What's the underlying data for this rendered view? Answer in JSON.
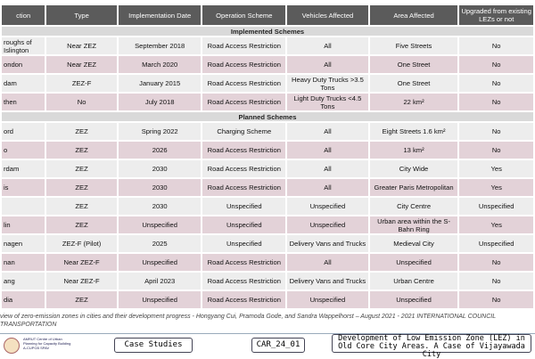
{
  "table": {
    "header": [
      "ction",
      "Type",
      "Implementation Date",
      "Operation Scheme",
      "Vehicles Affected",
      "Area Affected",
      "Upgraded from existing LEZs or not"
    ],
    "sections": [
      {
        "title": "Implemented Schemes",
        "rows": [
          [
            "roughs of Islington",
            "Near ZEZ",
            "September 2018",
            "Road Access Restriction",
            "All",
            "Five Streets",
            "No"
          ],
          [
            "ondon",
            "Near ZEZ",
            "March 2020",
            "Road Access Restriction",
            "All",
            "One Street",
            "No"
          ],
          [
            "dam",
            "ZEZ-F",
            "January 2015",
            "Road Access Restriction",
            "Heavy Duty Trucks >3.5 Tons",
            "One Street",
            "No"
          ],
          [
            "then",
            "No",
            "July 2018",
            "Road Access Restriction",
            "Light Duty Trucks <4.5 Tons",
            "22 km²",
            "No"
          ]
        ]
      },
      {
        "title": "Planned Schemes",
        "rows": [
          [
            "ord",
            "ZEZ",
            "Spring 2022",
            "Charging Scheme",
            "All",
            "Eight Streets 1.6 km²",
            "No"
          ],
          [
            "o",
            "ZEZ",
            "2026",
            "Road Access Restriction",
            "All",
            "13 km²",
            "No"
          ],
          [
            "rdam",
            "ZEZ",
            "2030",
            "Road Access Restriction",
            "All",
            "City Wide",
            "Yes"
          ],
          [
            "is",
            "ZEZ",
            "2030",
            "Road Access Restriction",
            "All",
            "Greater Paris Metropolitan",
            "Yes"
          ],
          [
            null,
            "ZEZ",
            "2030",
            "Unspecified",
            "Unspecified",
            "City Centre",
            "Unspecified"
          ],
          [
            "lin",
            "ZEZ",
            "Unspecified",
            "Unspecified",
            "Unspecified",
            "Urban area within the S-Bahn Ring",
            "Yes"
          ],
          [
            "nagen",
            "ZEZ-F (Pilot)",
            "2025",
            "Unspecified",
            "Delivery Vans and Trucks",
            "Medieval City",
            "Unspecified"
          ],
          [
            "nan",
            "Near ZEZ-F",
            "Unspecified",
            "Road Access Restriction",
            "All",
            "Unspecified",
            "No"
          ],
          [
            "ang",
            "Near ZEZ-F",
            "April 2023",
            "Road Access Restriction",
            "Delivery Vans and Trucks",
            "Urban Centre",
            "No"
          ],
          [
            "dia",
            "ZEZ",
            "Unspecified",
            "Road Access Restriction",
            "Unspecified",
            "Unspecified",
            "No"
          ]
        ]
      }
    ]
  },
  "caption": [
    "view of zero-emission zones in cities and their development progress - Hongyang Cui, Pramoda Gode, and Sandra Wappelhorst – August 2021 - 2021 INTERNATIONAL COUNCIL",
    "TRANSPORTATION"
  ],
  "footer": {
    "logo": "AMRUT Centre of Urban Planning for Capacity Building A-CUPCB SPAV",
    "section": "Case Studies",
    "code": "CAR_24_01",
    "title": "Development of Low Emission Zone (LEZ) in Old Core City Areas. A Case of Vijayawada City"
  }
}
